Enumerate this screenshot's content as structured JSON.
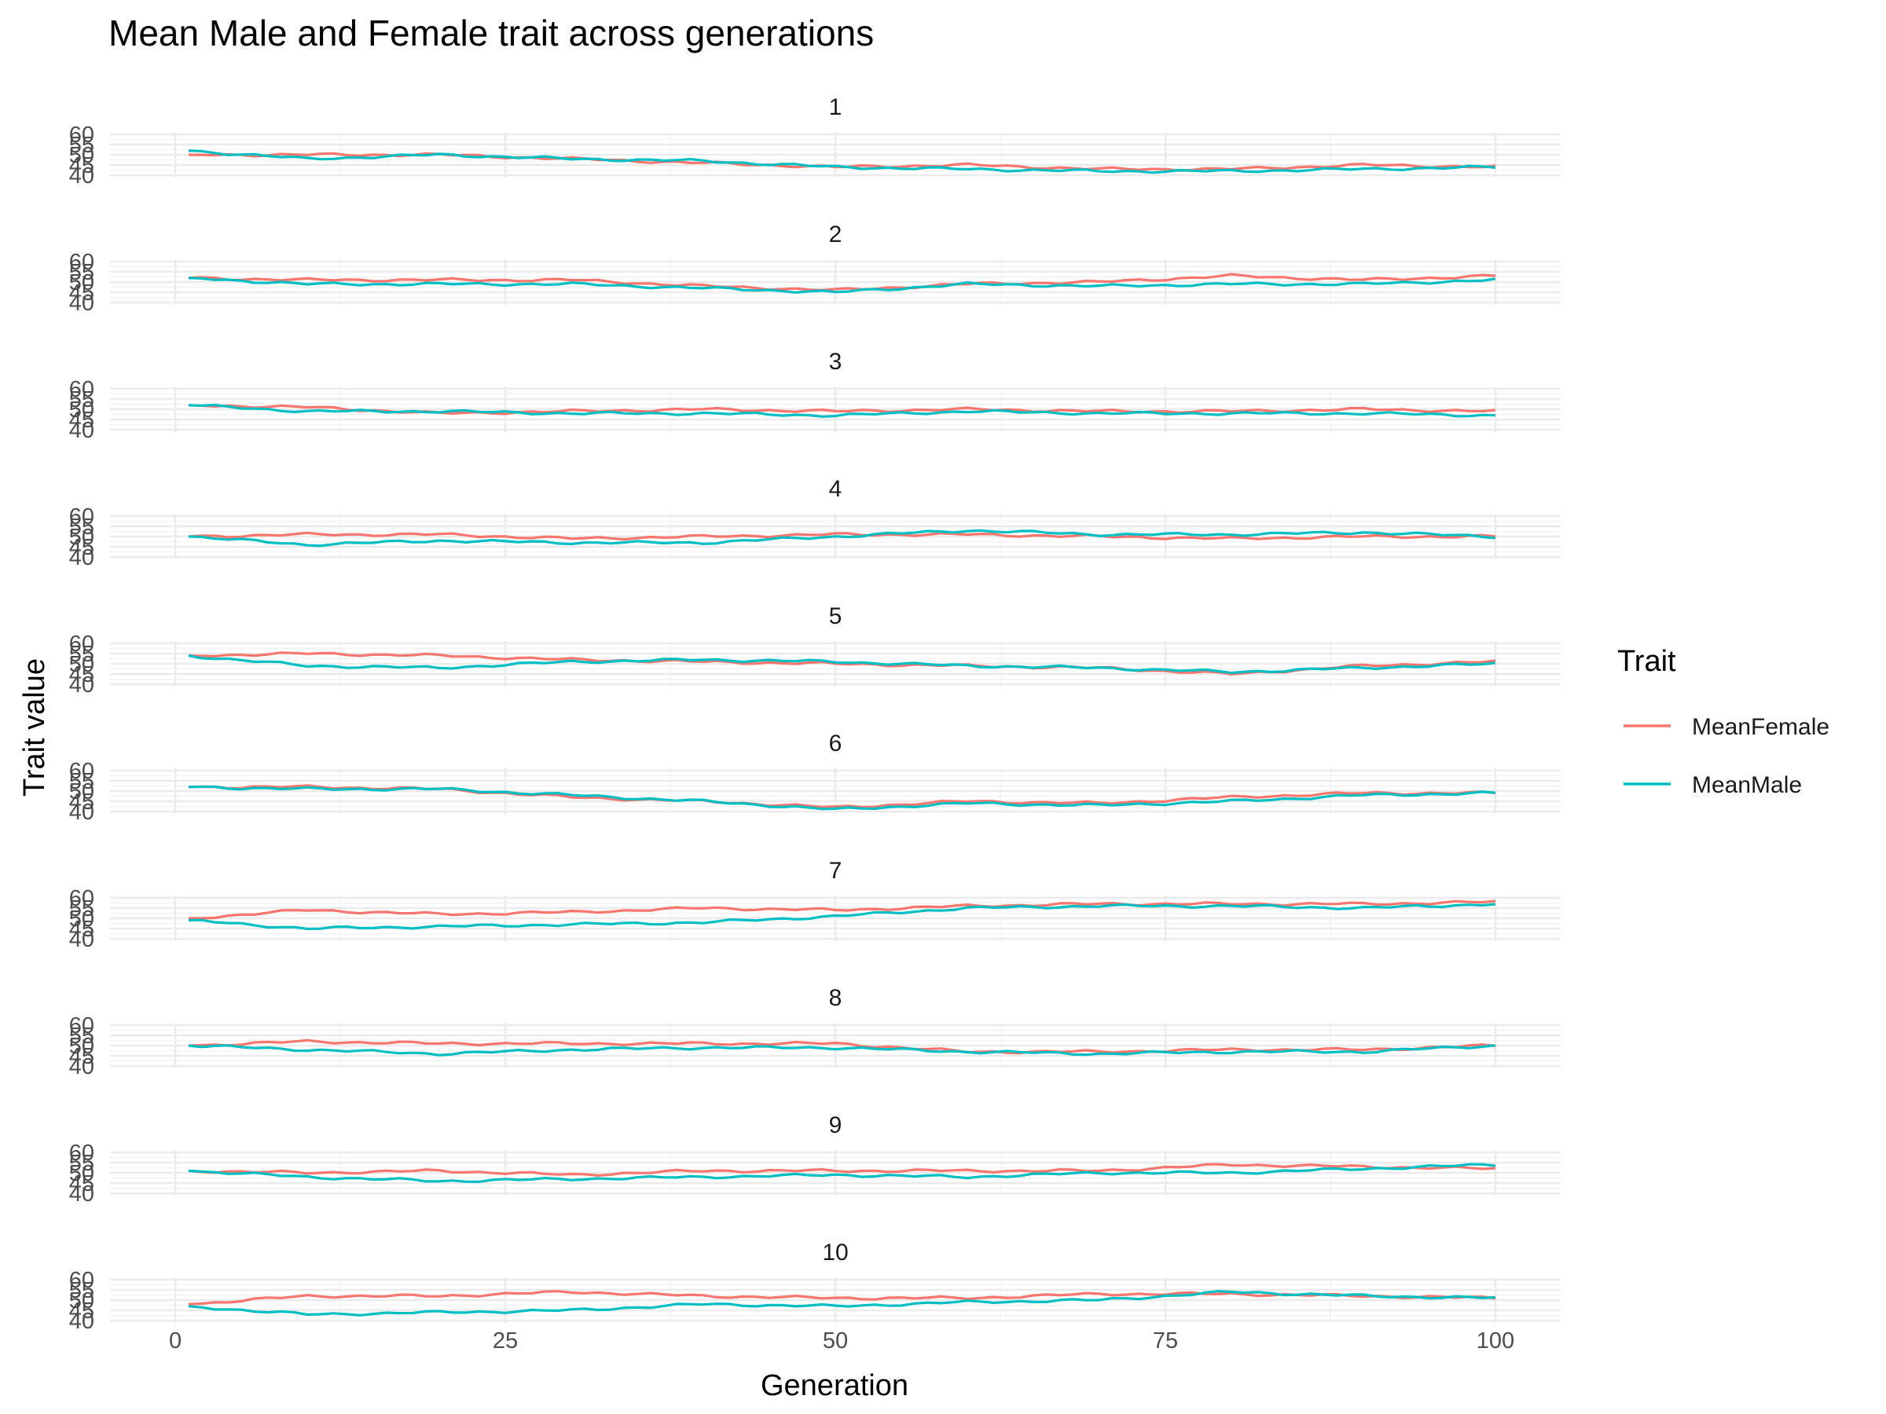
{
  "chart_data": {
    "type": "line",
    "title": "Mean Male and Female trait across generations",
    "xlabel": "Generation",
    "ylabel": "Trait value",
    "xlim": [
      0,
      100
    ],
    "ylim": [
      40,
      60
    ],
    "x_ticks": [
      0,
      25,
      50,
      75,
      100
    ],
    "y_ticks": [
      40,
      45,
      50,
      55,
      60
    ],
    "grid": true,
    "legend": {
      "title": "Trait",
      "position": "right"
    },
    "series_styles": [
      {
        "name": "MeanFemale",
        "color": "#F8766D"
      },
      {
        "name": "MeanMale",
        "color": "#00BFC4"
      }
    ],
    "x_knots": [
      1,
      10,
      20,
      30,
      40,
      50,
      60,
      70,
      80,
      90,
      100
    ],
    "panels": [
      {
        "label": "1",
        "female": [
          50,
          50,
          50,
          48,
          46,
          44,
          45,
          43,
          43,
          45,
          44
        ],
        "male": [
          52,
          48,
          50,
          48,
          47,
          44,
          43,
          42,
          42,
          43,
          44
        ]
      },
      {
        "label": "2",
        "female": [
          52,
          51,
          51,
          51,
          48,
          46,
          49,
          50,
          53,
          51,
          53
        ],
        "male": [
          52,
          49,
          49,
          49,
          47,
          45,
          49,
          48,
          49,
          49,
          51
        ]
      },
      {
        "label": "3",
        "female": [
          52,
          51,
          48,
          49,
          50,
          49,
          50,
          49,
          49,
          50,
          49
        ],
        "male": [
          52,
          49,
          49,
          48,
          48,
          47,
          49,
          48,
          48,
          48,
          47
        ]
      },
      {
        "label": "4",
        "female": [
          50,
          51,
          51,
          49,
          50,
          51,
          51,
          50,
          49,
          50,
          50
        ],
        "male": [
          50,
          46,
          48,
          47,
          47,
          50,
          53,
          51,
          51,
          52,
          50
        ]
      },
      {
        "label": "5",
        "female": [
          54,
          55,
          54,
          52,
          51,
          50,
          49,
          48,
          45,
          49,
          51
        ],
        "male": [
          54,
          49,
          48,
          51,
          52,
          51,
          49,
          48,
          46,
          48,
          50
        ]
      },
      {
        "label": "6",
        "female": [
          52,
          52,
          51,
          47,
          45,
          42,
          45,
          44,
          47,
          49,
          49
        ],
        "male": [
          52,
          51,
          51,
          48,
          45,
          41,
          44,
          43,
          45,
          48,
          49
        ]
      },
      {
        "label": "7",
        "female": [
          50,
          54,
          52,
          53,
          55,
          54,
          56,
          57,
          57,
          57,
          58
        ],
        "male": [
          49,
          45,
          46,
          47,
          48,
          51,
          55,
          56,
          56,
          55,
          57
        ]
      },
      {
        "label": "8",
        "female": [
          50,
          52,
          51,
          51,
          51,
          51,
          47,
          47,
          48,
          48,
          50
        ],
        "male": [
          50,
          48,
          46,
          48,
          49,
          49,
          47,
          46,
          47,
          47,
          50
        ]
      },
      {
        "label": "9",
        "female": [
          51,
          50,
          51,
          49,
          51,
          51,
          51,
          51,
          54,
          53,
          52
        ],
        "male": [
          51,
          48,
          46,
          47,
          48,
          49,
          48,
          50,
          50,
          52,
          54
        ]
      },
      {
        "label": "10",
        "female": [
          48,
          52,
          52,
          54,
          52,
          51,
          51,
          53,
          53,
          52,
          51
        ],
        "male": [
          47,
          43,
          44,
          45,
          48,
          47,
          49,
          50,
          54,
          52,
          51
        ]
      }
    ]
  }
}
